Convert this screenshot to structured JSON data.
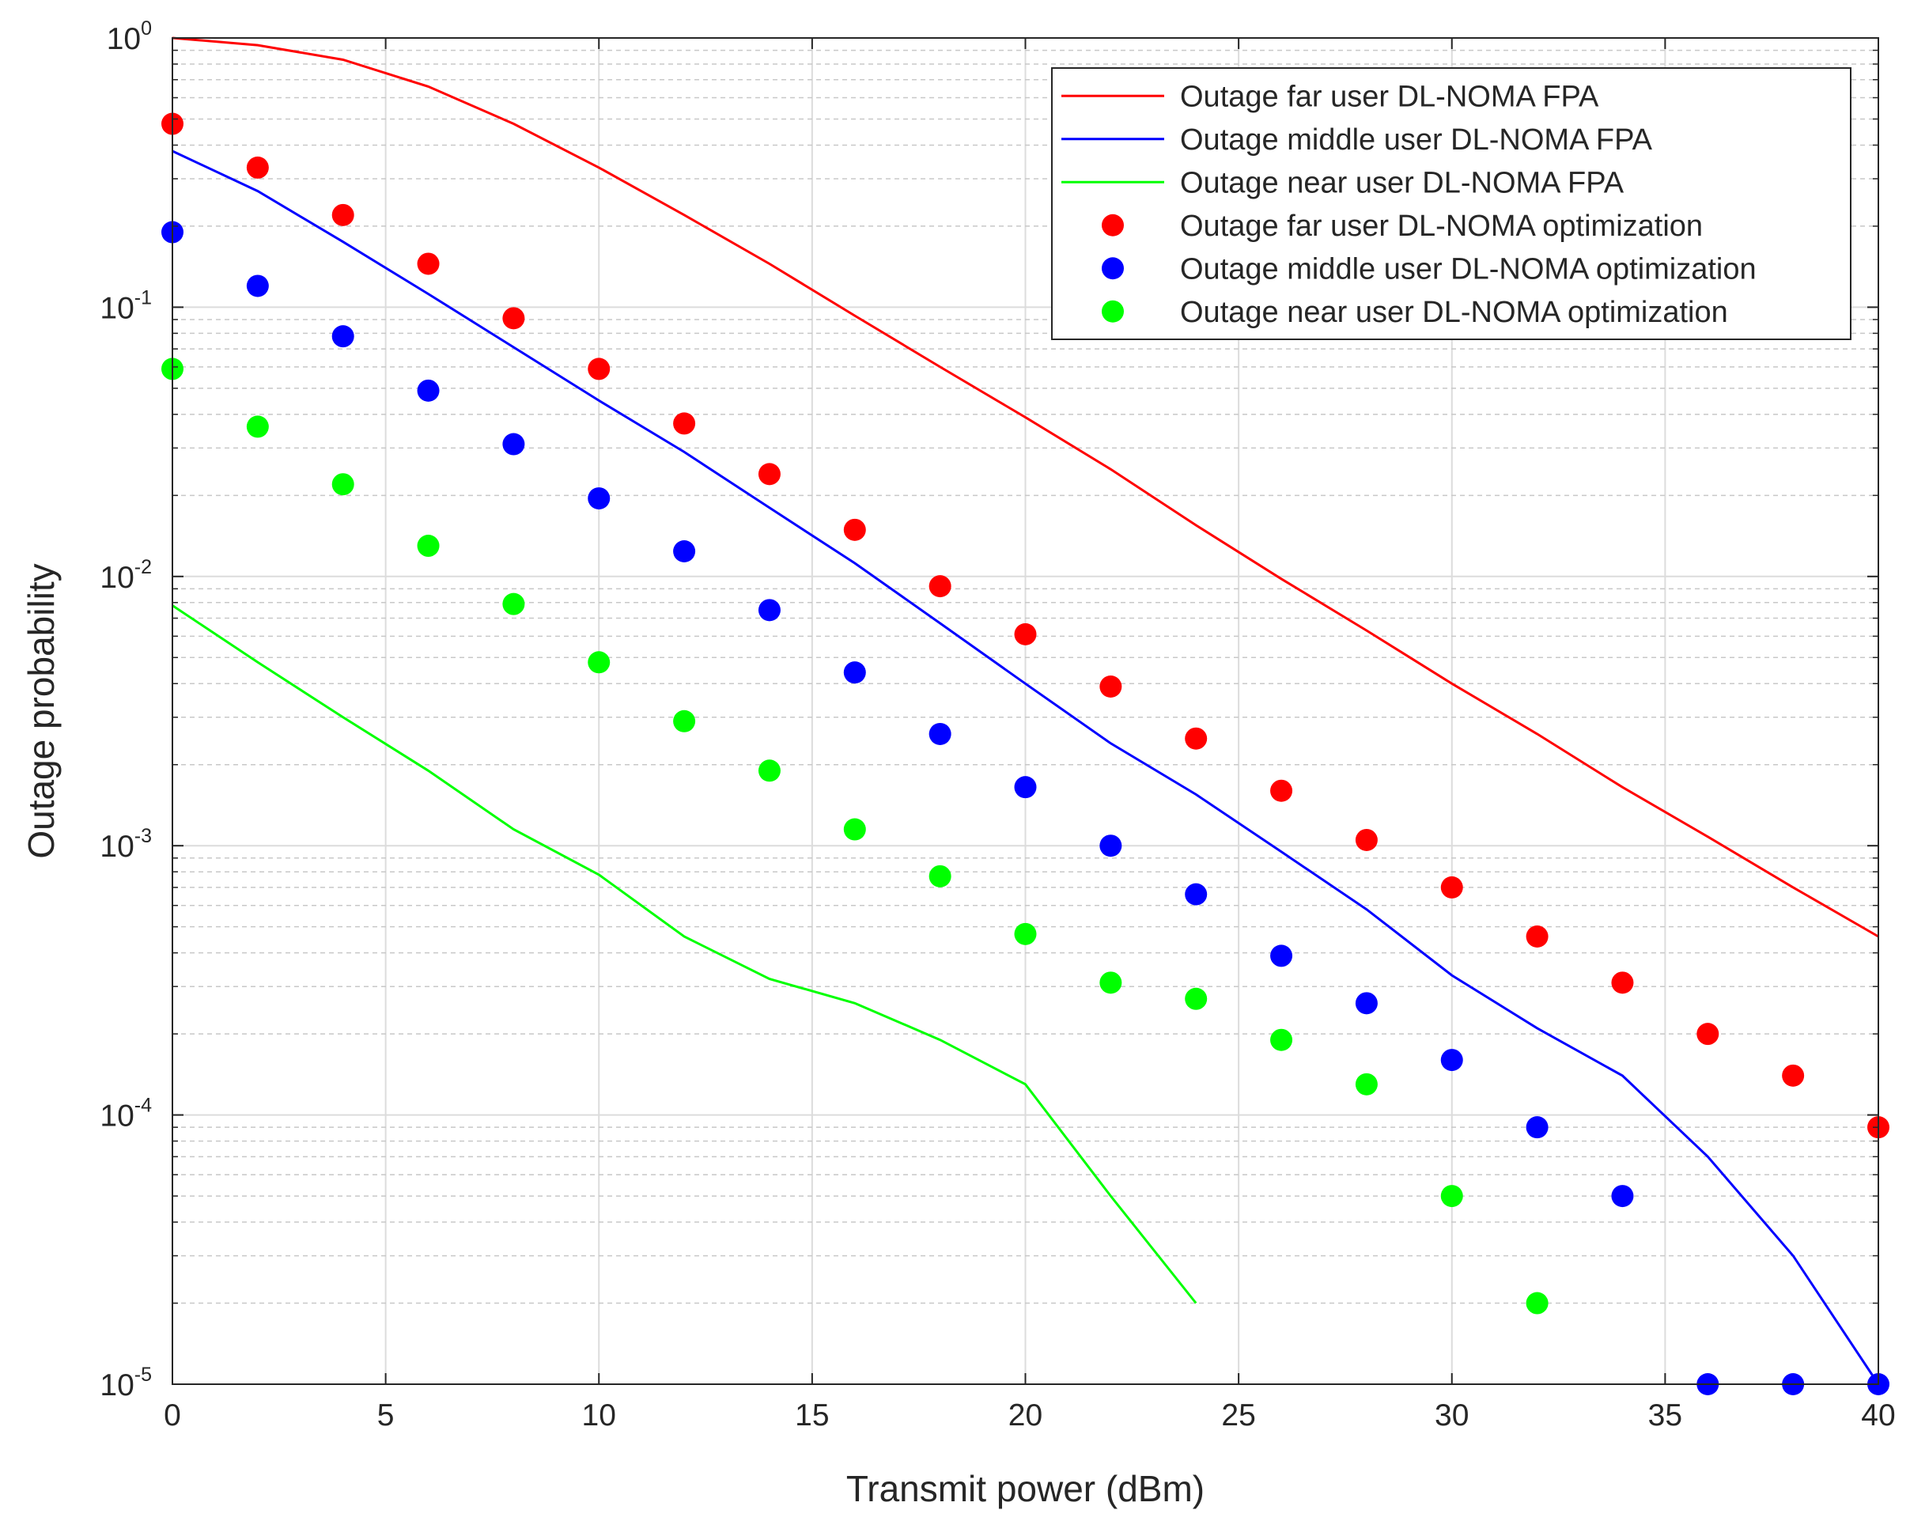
{
  "chart_data": {
    "type": "line",
    "title": "",
    "xlabel": "Transmit power (dBm)",
    "ylabel": "Outage probability",
    "xlim": [
      0,
      40
    ],
    "ylim": [
      1e-05,
      1
    ],
    "yscale": "log",
    "grid": true,
    "legend_position": "top-right",
    "x_ticks": [
      0,
      5,
      10,
      15,
      20,
      25,
      30,
      35,
      40
    ],
    "y_ticks": [
      {
        "base": "10",
        "exp": "0",
        "value": 1
      },
      {
        "base": "10",
        "exp": "-1",
        "value": 0.1
      },
      {
        "base": "10",
        "exp": "-2",
        "value": 0.01
      },
      {
        "base": "10",
        "exp": "-3",
        "value": 0.001
      },
      {
        "base": "10",
        "exp": "-4",
        "value": 0.0001
      },
      {
        "base": "10",
        "exp": "-5",
        "value": 1e-05
      }
    ],
    "series": [
      {
        "name": "Outage far user DL-NOMA FPA",
        "style": "line",
        "color": "#ff0000",
        "x": [
          0,
          2,
          4,
          6,
          8,
          10,
          12,
          14,
          16,
          18,
          20,
          22,
          24,
          26,
          28,
          30,
          32,
          34,
          36,
          38,
          40
        ],
        "y": [
          1.0,
          0.94,
          0.83,
          0.66,
          0.48,
          0.33,
          0.22,
          0.145,
          0.093,
          0.06,
          0.039,
          0.025,
          0.0155,
          0.0098,
          0.0063,
          0.004,
          0.0026,
          0.00165,
          0.00108,
          0.0007,
          0.00046
        ]
      },
      {
        "name": "Outage middle user DL-NOMA FPA",
        "style": "line",
        "color": "#0000ff",
        "x": [
          0,
          2,
          4,
          6,
          8,
          10,
          12,
          14,
          16,
          18,
          20,
          22,
          24,
          26,
          28,
          30,
          32,
          34,
          36,
          38,
          40
        ],
        "y": [
          0.38,
          0.27,
          0.175,
          0.112,
          0.071,
          0.045,
          0.029,
          0.018,
          0.0112,
          0.0067,
          0.004,
          0.0024,
          0.00155,
          0.00095,
          0.00058,
          0.00033,
          0.00021,
          0.00014,
          7e-05,
          3e-05,
          1e-05
        ]
      },
      {
        "name": "Outage near user DL-NOMA FPA",
        "style": "line",
        "color": "#00ff00",
        "x": [
          0,
          2,
          4,
          6,
          8,
          10,
          12,
          14,
          16,
          18,
          20,
          22,
          24
        ],
        "y": [
          0.0078,
          0.0048,
          0.003,
          0.0019,
          0.00115,
          0.00078,
          0.00046,
          0.00032,
          0.00026,
          0.00019,
          0.00013,
          5e-05,
          2e-05
        ]
      },
      {
        "name": "Outage far user DL-NOMA optimization",
        "style": "marker",
        "color": "#ff0000",
        "x": [
          0,
          2,
          4,
          6,
          8,
          10,
          12,
          14,
          16,
          18,
          20,
          22,
          24,
          26,
          28,
          30,
          32,
          34,
          36,
          38,
          40
        ],
        "y": [
          0.48,
          0.33,
          0.22,
          0.145,
          0.091,
          0.059,
          0.037,
          0.024,
          0.0149,
          0.0092,
          0.0061,
          0.0039,
          0.0025,
          0.0016,
          0.00105,
          0.0007,
          0.00046,
          0.00031,
          0.0002,
          0.00014,
          9e-05
        ]
      },
      {
        "name": "Outage middle user DL-NOMA optimization",
        "style": "marker",
        "color": "#0000ff",
        "x": [
          0,
          2,
          4,
          6,
          8,
          10,
          12,
          14,
          16,
          18,
          20,
          22,
          24,
          26,
          28,
          30,
          32,
          34,
          36,
          38,
          40
        ],
        "y": [
          0.19,
          0.12,
          0.078,
          0.049,
          0.031,
          0.0195,
          0.0124,
          0.0075,
          0.0044,
          0.0026,
          0.00165,
          0.001,
          0.00066,
          0.00039,
          0.00026,
          0.00016,
          9e-05,
          5e-05,
          1e-05,
          1e-05,
          1e-05
        ]
      },
      {
        "name": "Outage near user DL-NOMA optimization",
        "style": "marker",
        "color": "#00ff00",
        "x": [
          0,
          2,
          4,
          6,
          8,
          10,
          12,
          14,
          16,
          18,
          20,
          22,
          24,
          26,
          28,
          30,
          32
        ],
        "y": [
          0.059,
          0.036,
          0.022,
          0.013,
          0.0079,
          0.0048,
          0.0029,
          0.0019,
          0.00115,
          0.00077,
          0.00047,
          0.00031,
          0.00027,
          0.00019,
          0.00013,
          5e-05,
          2e-05
        ]
      }
    ]
  }
}
